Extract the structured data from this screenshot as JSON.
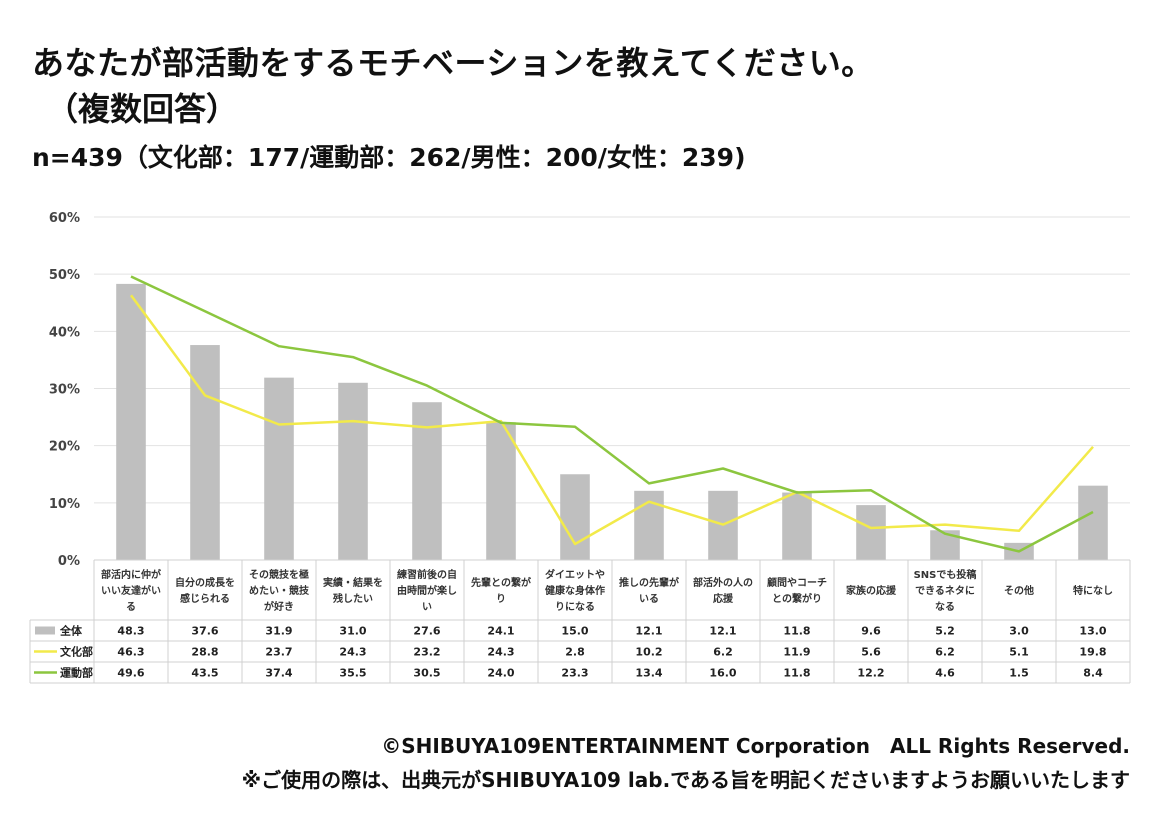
{
  "header": {
    "title_line1": "あなたが部活動をするモチベーションを教えてください。",
    "title_line2": "（複数回答）",
    "sample": "n=439（文化部：177/運動部：262/男性：200/女性：239)"
  },
  "footer": {
    "copyright": "©SHIBUYA109ENTERTAINMENT Corporation　ALL Rights Reserved.",
    "notice": "※ご使用の際は、出典元がSHIBUYA109 lab.である旨を明記くださいますようお願いいたします"
  },
  "chart_data": {
    "type": "bar",
    "y_ticks": [
      "0%",
      "10%",
      "20%",
      "30%",
      "40%",
      "50%",
      "60%"
    ],
    "ylim": [
      0,
      60
    ],
    "grid": true,
    "legend": "data-table",
    "categories": [
      "部活内に仲がいい友達がいる",
      "自分の成長を感じられる",
      "その競技を極めたい・競技が好き",
      "実績・結果を残したい",
      "練習前後の自由時間が楽しい",
      "先輩との繋がり",
      "ダイエットや健康な身体作りになる",
      "推しの先輩がいる",
      "部活外の人の応援",
      "顧問やコーチとの繋がり",
      "家族の応援",
      "SNSでも投稿できるネタになる",
      "その他",
      "特になし"
    ],
    "category_lines": [
      [
        "部活内に仲が",
        "いい友達がい",
        "る"
      ],
      [
        "自分の成長を",
        "感じられる"
      ],
      [
        "その競技を極",
        "めたい・競技",
        "が好き"
      ],
      [
        "実績・結果を",
        "残したい"
      ],
      [
        "練習前後の自",
        "由時間が楽し",
        "い"
      ],
      [
        "先輩との繋が",
        "り"
      ],
      [
        "ダイエットや",
        "健康な身体作",
        "りになる"
      ],
      [
        "推しの先輩が",
        "いる"
      ],
      [
        "部活外の人の",
        "応援"
      ],
      [
        "顧問やコーチ",
        "との繋がり"
      ],
      [
        "家族の応援"
      ],
      [
        "SNSでも投稿",
        "できるネタに",
        "なる"
      ],
      [
        "その他"
      ],
      [
        "特になし"
      ]
    ],
    "series": [
      {
        "name": "全体",
        "kind": "bar",
        "color": "#bfbfbf",
        "values": [
          48.3,
          37.6,
          31.9,
          31.0,
          27.6,
          24.1,
          15.0,
          12.1,
          12.1,
          11.8,
          9.6,
          5.2,
          3.0,
          13.0
        ],
        "labels": [
          "48.3",
          "37.6",
          "31.9",
          "31.0",
          "27.6",
          "24.1",
          "15.0",
          "12.1",
          "12.1",
          "11.8",
          "9.6",
          "5.2",
          "3.0",
          "13.0"
        ]
      },
      {
        "name": "文化部",
        "kind": "line",
        "color": "#f2ea4a",
        "values": [
          46.3,
          28.8,
          23.7,
          24.3,
          23.2,
          24.3,
          2.8,
          10.2,
          6.2,
          11.9,
          5.6,
          6.2,
          5.1,
          19.8
        ],
        "labels": [
          "46.3",
          "28.8",
          "23.7",
          "24.3",
          "23.2",
          "24.3",
          "2.8",
          "10.2",
          "6.2",
          "11.9",
          "5.6",
          "6.2",
          "5.1",
          "19.8"
        ]
      },
      {
        "name": "運動部",
        "kind": "line",
        "color": "#8cc63f",
        "values": [
          49.6,
          43.5,
          37.4,
          35.5,
          30.5,
          24.0,
          23.3,
          13.4,
          16.0,
          11.8,
          12.2,
          4.6,
          1.5,
          8.4
        ],
        "labels": [
          "49.6",
          "43.5",
          "37.4",
          "35.5",
          "30.5",
          "24.0",
          "23.3",
          "13.4",
          "16.0",
          "11.8",
          "12.2",
          "4.6",
          "1.5",
          "8.4"
        ]
      }
    ]
  }
}
